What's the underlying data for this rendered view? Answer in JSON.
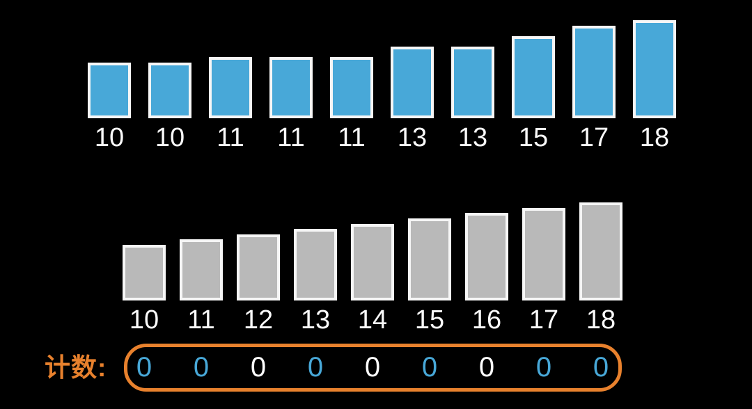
{
  "background": "#000000",
  "chart_data": [
    {
      "type": "bar",
      "name": "unsorted-values",
      "description": "input array (top row, blue bars)",
      "categories": [
        "10",
        "10",
        "11",
        "11",
        "11",
        "13",
        "13",
        "15",
        "17",
        "18"
      ],
      "values": [
        10,
        10,
        11,
        11,
        11,
        13,
        13,
        15,
        17,
        18
      ],
      "bar_color": "#48A8D8",
      "bar_border_color": "#F6F6F6",
      "label_color": "#FAFAFA"
    },
    {
      "type": "bar",
      "name": "count-buckets",
      "description": "bucket scale (middle row, gray bars)",
      "categories": [
        "10",
        "11",
        "12",
        "13",
        "14",
        "15",
        "16",
        "17",
        "18"
      ],
      "values": [
        10,
        11,
        12,
        13,
        14,
        15,
        16,
        17,
        18
      ],
      "bar_color": "#B9B9B9",
      "bar_border_color": "#F6F6F6",
      "label_color": "#FAFAFA"
    }
  ],
  "count_row": {
    "label": "计数:",
    "label_color": "#E8812D",
    "box_border_color": "#E8812D",
    "highlight_color": "#48A8D8",
    "default_color": "#FFFFFF",
    "cells": [
      {
        "value": "0",
        "bucket": "10",
        "highlighted": true
      },
      {
        "value": "0",
        "bucket": "11",
        "highlighted": true
      },
      {
        "value": "0",
        "bucket": "12",
        "highlighted": false
      },
      {
        "value": "0",
        "bucket": "13",
        "highlighted": true
      },
      {
        "value": "0",
        "bucket": "14",
        "highlighted": false
      },
      {
        "value": "0",
        "bucket": "15",
        "highlighted": true
      },
      {
        "value": "0",
        "bucket": "16",
        "highlighted": false
      },
      {
        "value": "0",
        "bucket": "17",
        "highlighted": true
      },
      {
        "value": "0",
        "bucket": "18",
        "highlighted": true
      }
    ]
  }
}
